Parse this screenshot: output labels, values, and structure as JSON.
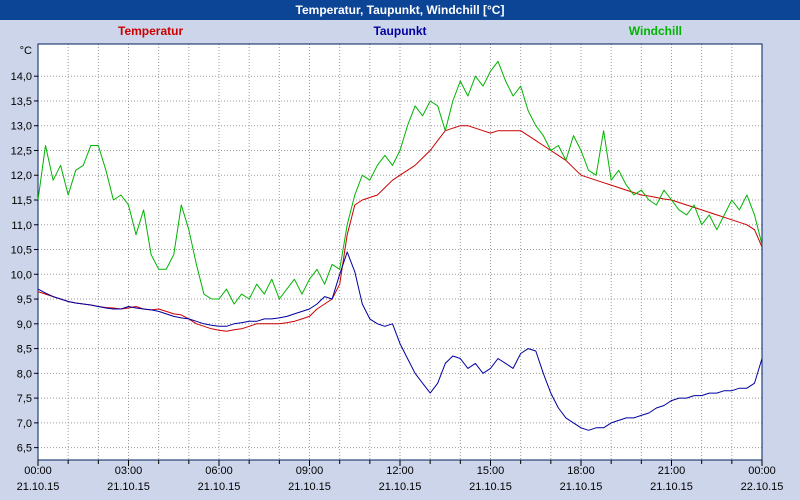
{
  "window": {
    "title": "Temperatur, Taupunkt, Windchill [°C]"
  },
  "legend": [
    {
      "label": "Temperatur",
      "color": "#cc0000"
    },
    {
      "label": "Taupunkt",
      "color": "#0000a0"
    },
    {
      "label": "Windchill",
      "color": "#00b400"
    }
  ],
  "chart_data": {
    "type": "line",
    "title": "Temperatur, Taupunkt, Windchill [°C]",
    "ylabel": "°C",
    "ylim": [
      6.5,
      14.0
    ],
    "ytick_step": 0.5,
    "decimal_separator": ",",
    "x_unit": "hours",
    "x_range_hours": [
      0,
      24
    ],
    "x_step_hours": 0.25,
    "grid": {
      "vertical_every_hours": 1,
      "horizontal_every_degC": 0.5,
      "style": "dotted"
    },
    "x_ticks": [
      {
        "hour": 0,
        "time": "00:00",
        "date": "21.10.15"
      },
      {
        "hour": 3,
        "time": "03:00",
        "date": "21.10.15"
      },
      {
        "hour": 6,
        "time": "06:00",
        "date": "21.10.15"
      },
      {
        "hour": 9,
        "time": "09:00",
        "date": "21.10.15"
      },
      {
        "hour": 12,
        "time": "12:00",
        "date": "21.10.15"
      },
      {
        "hour": 15,
        "time": "15:00",
        "date": "21.10.15"
      },
      {
        "hour": 18,
        "time": "18:00",
        "date": "21.10.15"
      },
      {
        "hour": 21,
        "time": "21:00",
        "date": "21.10.15"
      },
      {
        "hour": 24,
        "time": "00:00",
        "date": "22.10.15"
      }
    ],
    "series": [
      {
        "name": "Temperatur",
        "color": "#cc0000",
        "values": [
          9.65,
          9.6,
          9.55,
          9.5,
          9.45,
          9.42,
          9.4,
          9.38,
          9.35,
          9.33,
          9.32,
          9.3,
          9.32,
          9.35,
          9.3,
          9.28,
          9.3,
          9.25,
          9.2,
          9.18,
          9.1,
          9.0,
          8.95,
          8.9,
          8.87,
          8.85,
          8.88,
          8.9,
          8.95,
          9.0,
          9.0,
          9.0,
          9.0,
          9.02,
          9.05,
          9.1,
          9.15,
          9.3,
          9.4,
          9.5,
          9.8,
          10.8,
          11.4,
          11.5,
          11.55,
          11.6,
          11.75,
          11.9,
          12.0,
          12.1,
          12.2,
          12.35,
          12.5,
          12.7,
          12.9,
          12.95,
          13.0,
          13.0,
          12.95,
          12.9,
          12.85,
          12.9,
          12.9,
          12.9,
          12.9,
          12.8,
          12.7,
          12.6,
          12.5,
          12.4,
          12.3,
          12.15,
          12.0,
          11.95,
          11.9,
          11.85,
          11.8,
          11.75,
          11.7,
          11.65,
          11.6,
          11.58,
          11.55,
          11.52,
          11.5,
          11.45,
          11.4,
          11.35,
          11.3,
          11.25,
          11.2,
          11.15,
          11.1,
          11.05,
          11.0,
          10.9,
          10.55
        ]
      },
      {
        "name": "Taupunkt",
        "color": "#0000a0",
        "values": [
          9.7,
          9.62,
          9.55,
          9.5,
          9.45,
          9.42,
          9.4,
          9.38,
          9.35,
          9.32,
          9.3,
          9.3,
          9.35,
          9.32,
          9.3,
          9.28,
          9.25,
          9.2,
          9.15,
          9.12,
          9.1,
          9.05,
          9.0,
          8.97,
          8.95,
          8.95,
          9.0,
          9.02,
          9.05,
          9.05,
          9.1,
          9.1,
          9.12,
          9.15,
          9.2,
          9.25,
          9.3,
          9.4,
          9.55,
          9.5,
          10.0,
          10.45,
          10.05,
          9.4,
          9.1,
          9.0,
          8.95,
          9.0,
          8.6,
          8.3,
          8.0,
          7.8,
          7.6,
          7.8,
          8.2,
          8.35,
          8.3,
          8.1,
          8.2,
          8.0,
          8.1,
          8.3,
          8.2,
          8.1,
          8.4,
          8.5,
          8.45,
          8.0,
          7.6,
          7.3,
          7.1,
          7.0,
          6.9,
          6.85,
          6.9,
          6.9,
          7.0,
          7.05,
          7.1,
          7.1,
          7.15,
          7.2,
          7.3,
          7.35,
          7.45,
          7.5,
          7.5,
          7.55,
          7.55,
          7.6,
          7.6,
          7.65,
          7.65,
          7.7,
          7.7,
          7.8,
          8.3
        ]
      },
      {
        "name": "Windchill",
        "color": "#00b400",
        "values": [
          11.5,
          12.6,
          11.9,
          12.2,
          11.6,
          12.1,
          12.2,
          12.6,
          12.6,
          12.1,
          11.5,
          11.6,
          11.4,
          10.8,
          11.3,
          10.4,
          10.1,
          10.1,
          10.4,
          11.4,
          10.9,
          10.2,
          9.6,
          9.5,
          9.5,
          9.7,
          9.4,
          9.6,
          9.5,
          9.8,
          9.6,
          9.9,
          9.5,
          9.7,
          9.9,
          9.6,
          9.9,
          10.1,
          9.8,
          10.2,
          10.1,
          11.0,
          11.6,
          12.0,
          11.9,
          12.2,
          12.4,
          12.2,
          12.5,
          13.0,
          13.4,
          13.2,
          13.5,
          13.4,
          12.9,
          13.5,
          13.9,
          13.6,
          14.0,
          13.8,
          14.1,
          14.3,
          13.9,
          13.6,
          13.8,
          13.3,
          13.0,
          12.8,
          12.5,
          12.6,
          12.3,
          12.8,
          12.5,
          12.1,
          12.0,
          12.9,
          11.9,
          12.1,
          11.8,
          11.6,
          11.7,
          11.5,
          11.4,
          11.7,
          11.5,
          11.3,
          11.2,
          11.4,
          11.0,
          11.2,
          10.9,
          11.2,
          11.5,
          11.3,
          11.6,
          11.2,
          10.6
        ]
      }
    ]
  }
}
